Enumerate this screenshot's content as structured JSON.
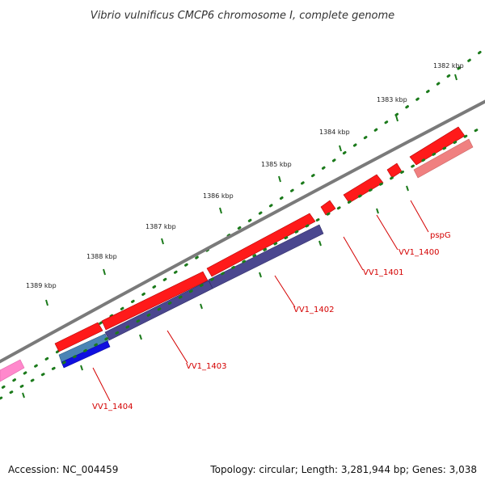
{
  "header": {
    "title": "Vibrio vulnificus CMCP6 chromosome I, complete genome"
  },
  "map": {
    "kbp_labels": [
      "1382 kbp",
      "1383 kbp",
      "1384 kbp",
      "1385 kbp",
      "1386 kbp",
      "1387 kbp",
      "1388 kbp",
      "1389 kbp"
    ],
    "gene_labels": [
      "pspG",
      "VV1_1400",
      "VV1_1401",
      "VV1_1402",
      "VV1_1403",
      "VV1_1404"
    ],
    "colors": {
      "backbone": "#808080",
      "forward_cds": "#ff0000",
      "reverse_cds": "#4b478f",
      "blast_light": "#f08080",
      "blue_feature": "#1010e0",
      "pink_feature": "#ff88cc",
      "tick": "#1b7a1b",
      "label": "#d40000"
    }
  },
  "footer": {
    "accession": "Accession: NC_004459",
    "summary": "Topology: circular; Length: 3,281,944 bp; Genes: 3,038"
  }
}
